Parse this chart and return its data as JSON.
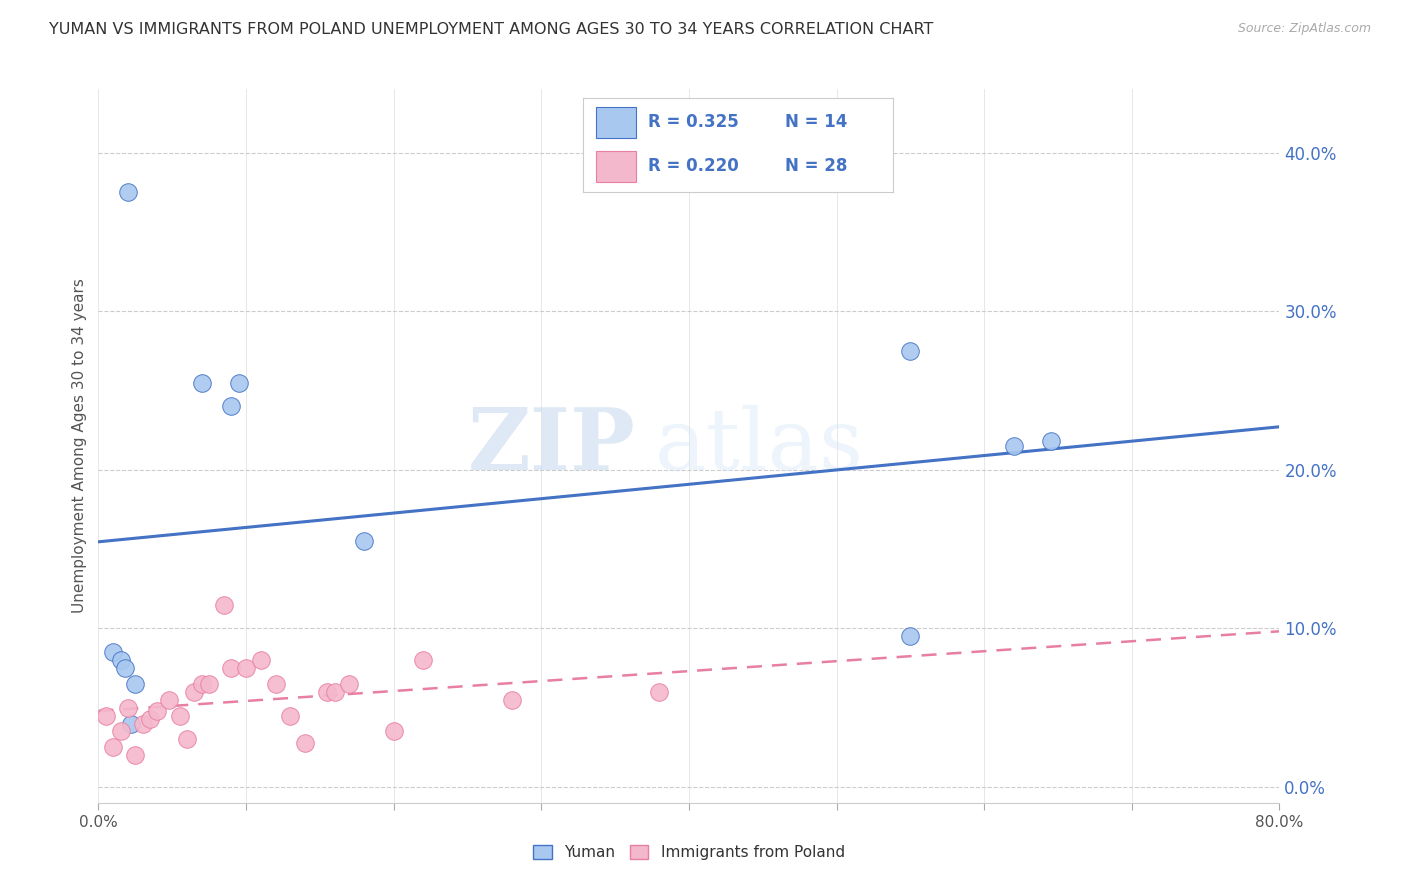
{
  "title": "YUMAN VS IMMIGRANTS FROM POLAND UNEMPLOYMENT AMONG AGES 30 TO 34 YEARS CORRELATION CHART",
  "source": "Source: ZipAtlas.com",
  "ylabel": "Unemployment Among Ages 30 to 34 years",
  "xlim": [
    0.0,
    0.8
  ],
  "ylim": [
    -0.01,
    0.44
  ],
  "plot_ylim": [
    0.0,
    0.42
  ],
  "yticks": [
    0.0,
    0.1,
    0.2,
    0.3,
    0.4
  ],
  "xticks": [
    0.0,
    0.1,
    0.2,
    0.3,
    0.4,
    0.5,
    0.6,
    0.7,
    0.8
  ],
  "yuman_scatter_x": [
    0.02,
    0.07,
    0.09,
    0.095,
    0.01,
    0.015,
    0.018,
    0.025,
    0.18,
    0.55,
    0.62,
    0.645,
    0.022,
    0.55
  ],
  "yuman_scatter_y": [
    0.375,
    0.255,
    0.24,
    0.255,
    0.085,
    0.08,
    0.075,
    0.065,
    0.155,
    0.275,
    0.215,
    0.218,
    0.04,
    0.095
  ],
  "poland_scatter_x": [
    0.005,
    0.01,
    0.015,
    0.02,
    0.025,
    0.03,
    0.035,
    0.04,
    0.048,
    0.055,
    0.06,
    0.065,
    0.07,
    0.075,
    0.085,
    0.09,
    0.1,
    0.11,
    0.12,
    0.13,
    0.14,
    0.155,
    0.16,
    0.17,
    0.2,
    0.22,
    0.28,
    0.38
  ],
  "poland_scatter_y": [
    0.045,
    0.025,
    0.035,
    0.05,
    0.02,
    0.04,
    0.043,
    0.048,
    0.055,
    0.045,
    0.03,
    0.06,
    0.065,
    0.065,
    0.115,
    0.075,
    0.075,
    0.08,
    0.065,
    0.045,
    0.028,
    0.06,
    0.06,
    0.065,
    0.035,
    0.08,
    0.055,
    0.06
  ],
  "yuman_R": 0.325,
  "yuman_N": 14,
  "poland_R": 0.22,
  "poland_N": 28,
  "yuman_color": "#A8C8F0",
  "poland_color": "#F4B8CC",
  "yuman_line_color": "#4472C4",
  "poland_line_color": "#E87FA0",
  "watermark_zip": "ZIP",
  "watermark_atlas": "atlas",
  "background_color": "#FFFFFF",
  "grid_color": "#CCCCCC"
}
